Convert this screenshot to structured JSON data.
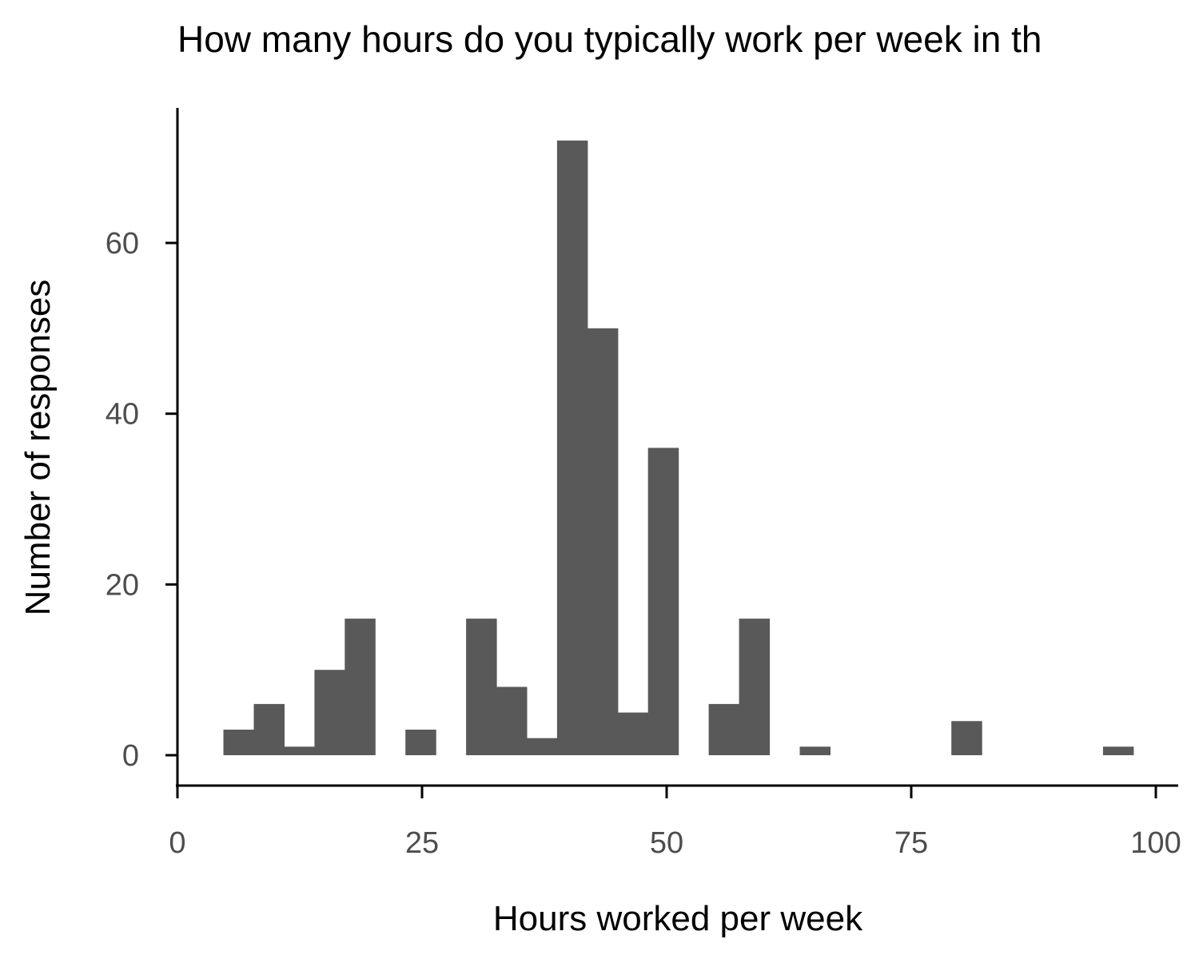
{
  "chart_data": {
    "type": "bar",
    "title": "How many hours do you typically work per week in th",
    "xlabel": "Hours worked per week",
    "ylabel": "Number of responses",
    "xlim": [
      0,
      100
    ],
    "ylim": [
      0,
      72
    ],
    "x_ticks": [
      "0",
      "25",
      "50",
      "75",
      "100"
    ],
    "y_ticks": [
      "0",
      "20",
      "40",
      "60"
    ],
    "bin_width": 3.1,
    "bins": [
      {
        "start": 4.7,
        "count": 3
      },
      {
        "start": 7.8,
        "count": 6
      },
      {
        "start": 10.9,
        "count": 1
      },
      {
        "start": 14.0,
        "count": 10
      },
      {
        "start": 17.1,
        "count": 16
      },
      {
        "start": 23.3,
        "count": 3
      },
      {
        "start": 29.5,
        "count": 16
      },
      {
        "start": 32.6,
        "count": 8
      },
      {
        "start": 35.7,
        "count": 2
      },
      {
        "start": 38.8,
        "count": 72
      },
      {
        "start": 41.9,
        "count": 50
      },
      {
        "start": 45.0,
        "count": 5
      },
      {
        "start": 48.1,
        "count": 36
      },
      {
        "start": 54.3,
        "count": 6
      },
      {
        "start": 57.4,
        "count": 16
      },
      {
        "start": 63.6,
        "count": 1
      },
      {
        "start": 79.1,
        "count": 4
      },
      {
        "start": 94.6,
        "count": 1
      }
    ],
    "grid": false,
    "bar_color": "#595959",
    "axis_color": "#000000"
  }
}
